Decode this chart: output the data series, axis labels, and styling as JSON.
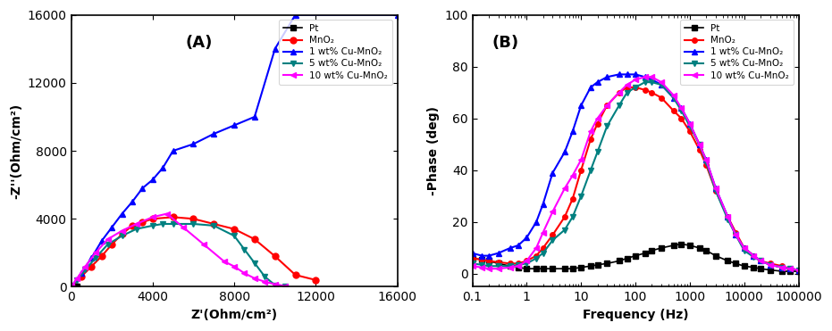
{
  "panel_A_label": "(A)",
  "panel_B_label": "(B)",
  "xlabel_A": "Z'(Ohm/cm²)",
  "ylabel_A": "-Z''(Ohm/cm²)",
  "xlabel_B": "Frequency (Hz)",
  "ylabel_B": "-Phase (deg)",
  "xlim_A": [
    0,
    16000
  ],
  "ylim_A": [
    0,
    16000
  ],
  "xlim_B_log": [
    0.1,
    100000
  ],
  "ylim_B": [
    -5,
    100
  ],
  "yticks_A": [
    0,
    4000,
    8000,
    12000,
    16000
  ],
  "yticks_B": [
    0,
    20,
    40,
    60,
    80,
    100
  ],
  "legend_labels": [
    "Pt",
    "MnO₂",
    "1 wt% Cu-MnO₂",
    "5 wt% Cu-MnO₂",
    "10 wt% Cu-MnO₂"
  ],
  "colors": [
    "#000000",
    "#ff0000",
    "#0000ff",
    "#008080",
    "#ff00ff"
  ],
  "markers": [
    "s",
    "o",
    "^",
    "v",
    "<"
  ],
  "background_color": "#ffffff",
  "Pt_nyquist_x": [
    0,
    50,
    100,
    150,
    200,
    250,
    300
  ],
  "Pt_nyquist_y": [
    0,
    5,
    8,
    10,
    8,
    5,
    2
  ],
  "MnO2_nyquist_x": [
    0,
    500,
    1000,
    1500,
    2000,
    2500,
    3000,
    3500,
    4000,
    5000,
    6000,
    7000,
    8000,
    9000,
    10000,
    11000,
    12000
  ],
  "MnO2_nyquist_y": [
    0,
    600,
    1200,
    1800,
    2500,
    3100,
    3600,
    3800,
    4000,
    4100,
    4000,
    3700,
    3400,
    2800,
    1800,
    700,
    400
  ],
  "Cu1_nyquist_x": [
    0,
    500,
    1000,
    1500,
    2000,
    2500,
    3000,
    3500,
    4000,
    4500,
    5000,
    6000,
    7000,
    8000,
    9000,
    10000,
    11000,
    16000
  ],
  "Cu1_nyquist_y": [
    0,
    800,
    1700,
    2700,
    3500,
    4300,
    5000,
    5800,
    6300,
    7000,
    8000,
    8400,
    9000,
    9500,
    10000,
    14000,
    16000,
    16000
  ],
  "Cu5_nyquist_x": [
    0,
    300,
    700,
    1200,
    1800,
    2500,
    3200,
    4000,
    4500,
    5000,
    6000,
    7000,
    8000,
    8500,
    9000,
    9500,
    10000,
    10500
  ],
  "Cu5_nyquist_y": [
    0,
    400,
    1000,
    1700,
    2500,
    3000,
    3400,
    3600,
    3700,
    3700,
    3700,
    3600,
    3000,
    2200,
    1400,
    600,
    100,
    50
  ],
  "Cu10_nyquist_x": [
    0,
    300,
    700,
    1200,
    1800,
    2500,
    3200,
    4000,
    4700,
    5500,
    6500,
    7500,
    8000,
    8500,
    9000,
    9500,
    10000,
    10500
  ],
  "Cu10_nyquist_y": [
    0,
    500,
    1200,
    2000,
    2800,
    3300,
    3700,
    4100,
    4300,
    3500,
    2500,
    1500,
    1200,
    800,
    500,
    300,
    150,
    50
  ],
  "freq_B": [
    0.1,
    0.15,
    0.2,
    0.3,
    0.5,
    0.7,
    1.0,
    1.5,
    2.0,
    3.0,
    5.0,
    7.0,
    10,
    15,
    20,
    30,
    50,
    70,
    100,
    150,
    200,
    300,
    500,
    700,
    1000,
    1500,
    2000,
    3000,
    5000,
    7000,
    10000,
    15000,
    20000,
    30000,
    50000,
    70000,
    100000
  ],
  "Pt_phase": [
    6,
    5.5,
    5,
    4,
    3,
    2.5,
    2,
    2,
    2,
    2,
    2,
    2,
    2.5,
    3,
    3.5,
    4,
    5,
    6,
    7,
    8,
    9,
    10,
    11,
    11.5,
    11,
    10,
    9,
    7,
    5,
    4,
    3,
    2.5,
    2,
    1.5,
    1,
    1,
    1
  ],
  "MnO2_phase": [
    6,
    5.5,
    5,
    4.5,
    4,
    4,
    5,
    7,
    10,
    15,
    22,
    29,
    40,
    52,
    58,
    65,
    70,
    72,
    72,
    71,
    70,
    68,
    63,
    60,
    55,
    48,
    42,
    32,
    22,
    16,
    10,
    7,
    5,
    4,
    3,
    2,
    1.5
  ],
  "Cu1_phase": [
    8,
    7,
    7,
    8,
    10,
    11,
    14,
    20,
    27,
    39,
    47,
    55,
    65,
    72,
    74,
    76,
    77,
    77,
    77,
    76,
    75,
    73,
    68,
    64,
    58,
    50,
    44,
    33,
    22,
    15,
    10,
    7,
    5,
    3.5,
    2.5,
    2,
    1.5
  ],
  "Cu5_phase": [
    4,
    3.5,
    3,
    3,
    3,
    3.5,
    4,
    6,
    8,
    13,
    17,
    22,
    30,
    40,
    47,
    57,
    65,
    70,
    72,
    74,
    74,
    73,
    68,
    63,
    57,
    50,
    43,
    32,
    21,
    15,
    9,
    6.5,
    5,
    3.5,
    2.5,
    2,
    1.5
  ],
  "Cu10_phase": [
    3,
    2.5,
    2,
    2,
    2.5,
    3,
    5,
    10,
    16,
    24,
    33,
    38,
    44,
    55,
    60,
    65,
    70,
    73,
    75,
    76,
    76,
    74,
    69,
    64,
    58,
    50,
    44,
    33,
    22,
    15,
    10,
    7,
    5,
    3.5,
    2.5,
    2,
    1.5
  ]
}
